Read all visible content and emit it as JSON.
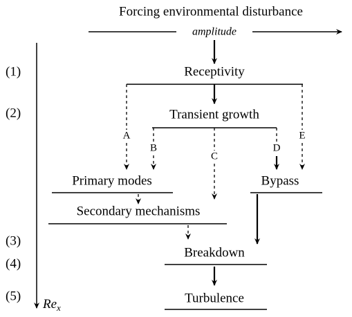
{
  "title": "Forcing environmental disturbance",
  "input_label": "amplitude",
  "stages": [
    "(1)",
    "(2)",
    "(3)",
    "(4)",
    "(5)"
  ],
  "axis_label": {
    "main": "Re",
    "sub": "x"
  },
  "nodes": [
    "Receptivity",
    "Transient growth",
    "Primary modes",
    "Bypass",
    "Secondary mechanisms",
    "Breakdown",
    "Turbulence"
  ],
  "paths": [
    "A",
    "B",
    "C",
    "D",
    "E"
  ]
}
